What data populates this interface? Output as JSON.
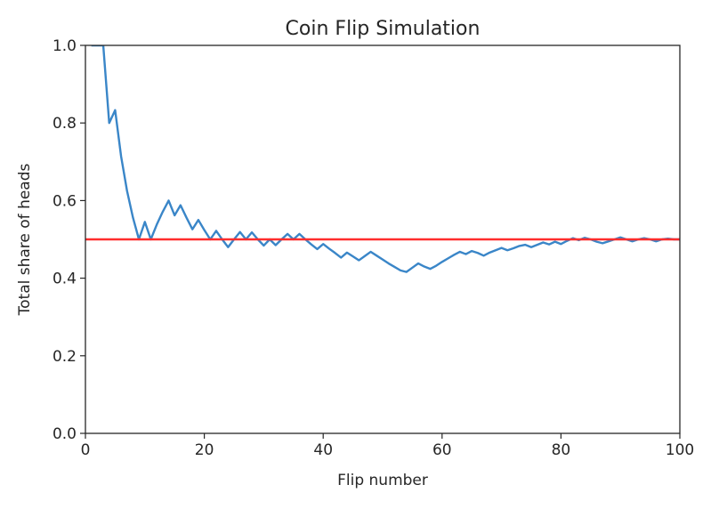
{
  "chart_data": {
    "type": "line",
    "title": "Coin Flip Simulation",
    "xlabel": "Flip number",
    "ylabel": "Total share of heads",
    "xlim": [
      0,
      100
    ],
    "ylim": [
      0.0,
      1.0
    ],
    "xticks": [
      0,
      20,
      40,
      60,
      80,
      100
    ],
    "xtick_labels": [
      "0",
      "20",
      "40",
      "60",
      "80",
      "100"
    ],
    "yticks": [
      0.0,
      0.2,
      0.4,
      0.6,
      0.8,
      1.0
    ],
    "ytick_labels": [
      "0.0",
      "0.2",
      "0.4",
      "0.6",
      "0.8",
      "1.0"
    ],
    "grid": false,
    "series": [
      {
        "color": "#3a86c8",
        "x": [
          1,
          2,
          3,
          4,
          5,
          6,
          7,
          8,
          9,
          10,
          11,
          12,
          13,
          14,
          15,
          16,
          17,
          18,
          19,
          20,
          21,
          22,
          23,
          24,
          25,
          26,
          27,
          28,
          29,
          30,
          31,
          32,
          33,
          34,
          35,
          36,
          37,
          38,
          39,
          40,
          41,
          42,
          43,
          44,
          45,
          46,
          47,
          48,
          49,
          50,
          51,
          52,
          53,
          54,
          55,
          56,
          57,
          58,
          59,
          60,
          61,
          62,
          63,
          64,
          65,
          66,
          67,
          68,
          69,
          70,
          71,
          72,
          73,
          74,
          75,
          76,
          77,
          78,
          79,
          80,
          81,
          82,
          83,
          84,
          85,
          86,
          87,
          88,
          89,
          90,
          91,
          92,
          93,
          94,
          95,
          96,
          97,
          98,
          99,
          100
        ],
        "y": [
          1.0,
          1.0,
          1.0,
          0.8,
          0.833,
          0.714,
          0.625,
          0.556,
          0.5,
          0.545,
          0.5,
          0.538,
          0.571,
          0.6,
          0.562,
          0.588,
          0.556,
          0.526,
          0.55,
          0.524,
          0.5,
          0.522,
          0.5,
          0.48,
          0.5,
          0.519,
          0.5,
          0.518,
          0.5,
          0.484,
          0.5,
          0.485,
          0.5,
          0.514,
          0.5,
          0.514,
          0.5,
          0.487,
          0.475,
          0.488,
          0.476,
          0.465,
          0.453,
          0.466,
          0.456,
          0.446,
          0.457,
          0.468,
          0.458,
          0.448,
          0.438,
          0.429,
          0.42,
          0.416,
          0.427,
          0.438,
          0.43,
          0.424,
          0.432,
          0.442,
          0.451,
          0.46,
          0.468,
          0.462,
          0.47,
          0.465,
          0.458,
          0.466,
          0.472,
          0.478,
          0.472,
          0.477,
          0.483,
          0.486,
          0.48,
          0.486,
          0.492,
          0.487,
          0.494,
          0.488,
          0.496,
          0.503,
          0.498,
          0.504,
          0.5,
          0.494,
          0.49,
          0.495,
          0.5,
          0.505,
          0.5,
          0.495,
          0.5,
          0.503,
          0.5,
          0.495,
          0.5,
          0.502,
          0.5,
          0.5
        ]
      },
      {
        "color": "#ff2d2d",
        "x": [
          0,
          100
        ],
        "y": [
          0.5,
          0.5
        ]
      }
    ]
  }
}
